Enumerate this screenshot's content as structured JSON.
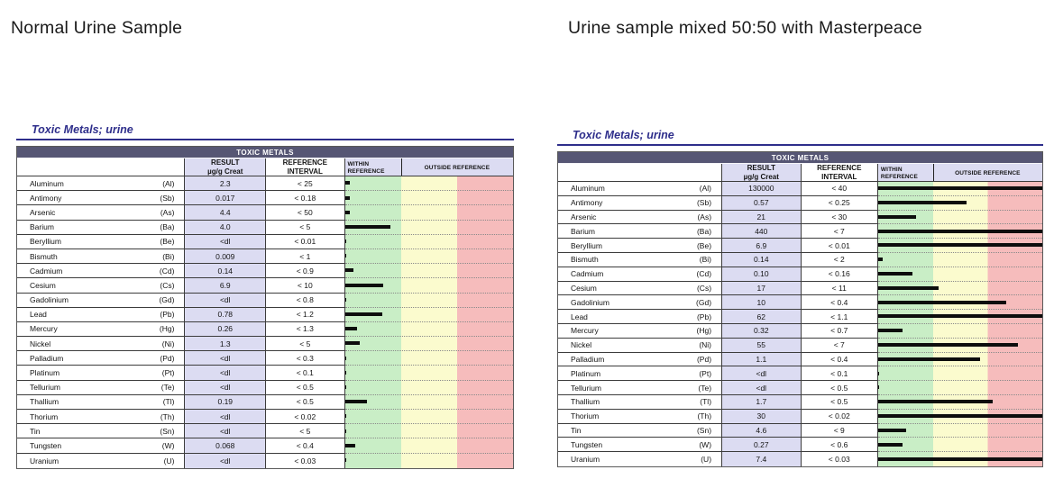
{
  "page": {
    "left_title": "Normal Urine Sample",
    "right_title": "Urine sample mixed 50:50 with Masterpeace"
  },
  "report": {
    "section_title": "Toxic Metals; urine",
    "table_caption": "TOXIC METALS",
    "headers": {
      "result_line1": "RESULT",
      "result_line2": "µg/g Creat",
      "reference_line1": "REFERENCE",
      "reference_line2": "INTERVAL",
      "within_line1": "WITHIN",
      "within_line2": "REFERENCE",
      "outside": "OUTSIDE REFERENCE"
    },
    "colors": {
      "within_zone": "#c9eec6",
      "outside_mid_zone": "#fbfbce",
      "outside_high_zone": "#f6bcbc",
      "result_column": "#dcdcf2",
      "caption_bar": "#565674",
      "section_title": "#2e2e8b",
      "bar": "#0d0d0d"
    }
  },
  "left_table": {
    "rows": [
      {
        "name": "Aluminum",
        "symbol": "(Al)",
        "result": "2.3",
        "reference": "< 25",
        "bar_pct": 3
      },
      {
        "name": "Antimony",
        "symbol": "(Sb)",
        "result": "0.017",
        "reference": "< 0.18",
        "bar_pct": 3
      },
      {
        "name": "Arsenic",
        "symbol": "(As)",
        "result": "4.4",
        "reference": "< 50",
        "bar_pct": 3
      },
      {
        "name": "Barium",
        "symbol": "(Ba)",
        "result": "4.0",
        "reference": "< 5",
        "bar_pct": 27
      },
      {
        "name": "Beryllium",
        "symbol": "(Be)",
        "result": "<dl",
        "reference": "< 0.01",
        "bar_pct": 0
      },
      {
        "name": "Bismuth",
        "symbol": "(Bi)",
        "result": "0.009",
        "reference": "< 1",
        "bar_pct": 1
      },
      {
        "name": "Cadmium",
        "symbol": "(Cd)",
        "result": "0.14",
        "reference": "< 0.9",
        "bar_pct": 5
      },
      {
        "name": "Cesium",
        "symbol": "(Cs)",
        "result": "6.9",
        "reference": "< 10",
        "bar_pct": 23
      },
      {
        "name": "Gadolinium",
        "symbol": "(Gd)",
        "result": "<dl",
        "reference": "< 0.8",
        "bar_pct": 0
      },
      {
        "name": "Lead",
        "symbol": "(Pb)",
        "result": "0.78",
        "reference": "< 1.2",
        "bar_pct": 22
      },
      {
        "name": "Mercury",
        "symbol": "(Hg)",
        "result": "0.26",
        "reference": "< 1.3",
        "bar_pct": 7
      },
      {
        "name": "Nickel",
        "symbol": "(Ni)",
        "result": "1.3",
        "reference": "< 5",
        "bar_pct": 9
      },
      {
        "name": "Palladium",
        "symbol": "(Pd)",
        "result": "<dl",
        "reference": "< 0.3",
        "bar_pct": 0
      },
      {
        "name": "Platinum",
        "symbol": "(Pt)",
        "result": "<dl",
        "reference": "< 0.1",
        "bar_pct": 0
      },
      {
        "name": "Tellurium",
        "symbol": "(Te)",
        "result": "<dl",
        "reference": "< 0.5",
        "bar_pct": 0
      },
      {
        "name": "Thallium",
        "symbol": "(Tl)",
        "result": "0.19",
        "reference": "< 0.5",
        "bar_pct": 13
      },
      {
        "name": "Thorium",
        "symbol": "(Th)",
        "result": "<dl",
        "reference": "< 0.02",
        "bar_pct": 0
      },
      {
        "name": "Tin",
        "symbol": "(Sn)",
        "result": "<dl",
        "reference": "< 5",
        "bar_pct": 0
      },
      {
        "name": "Tungsten",
        "symbol": "(W)",
        "result": "0.068",
        "reference": "< 0.4",
        "bar_pct": 6
      },
      {
        "name": "Uranium",
        "symbol": "(U)",
        "result": "<dl",
        "reference": "< 0.03",
        "bar_pct": 0
      }
    ]
  },
  "right_table": {
    "rows": [
      {
        "name": "Aluminum",
        "symbol": "(Al)",
        "result": "130000",
        "reference": "< 40",
        "bar_pct": 100
      },
      {
        "name": "Antimony",
        "symbol": "(Sb)",
        "result": "0.57",
        "reference": "< 0.25",
        "bar_pct": 54
      },
      {
        "name": "Arsenic",
        "symbol": "(As)",
        "result": "21",
        "reference": "< 30",
        "bar_pct": 23
      },
      {
        "name": "Barium",
        "symbol": "(Ba)",
        "result": "440",
        "reference": "< 7",
        "bar_pct": 100
      },
      {
        "name": "Beryllium",
        "symbol": "(Be)",
        "result": "6.9",
        "reference": "< 0.01",
        "bar_pct": 100
      },
      {
        "name": "Bismuth",
        "symbol": "(Bi)",
        "result": "0.14",
        "reference": "< 2",
        "bar_pct": 3
      },
      {
        "name": "Cadmium",
        "symbol": "(Cd)",
        "result": "0.10",
        "reference": "< 0.16",
        "bar_pct": 21
      },
      {
        "name": "Cesium",
        "symbol": "(Cs)",
        "result": "17",
        "reference": "< 11",
        "bar_pct": 37
      },
      {
        "name": "Gadolinium",
        "symbol": "(Gd)",
        "result": "10",
        "reference": "< 0.4",
        "bar_pct": 78
      },
      {
        "name": "Lead",
        "symbol": "(Pb)",
        "result": "62",
        "reference": "< 1.1",
        "bar_pct": 100
      },
      {
        "name": "Mercury",
        "symbol": "(Hg)",
        "result": "0.32",
        "reference": "< 0.7",
        "bar_pct": 15
      },
      {
        "name": "Nickel",
        "symbol": "(Ni)",
        "result": "55",
        "reference": "< 7",
        "bar_pct": 85
      },
      {
        "name": "Palladium",
        "symbol": "(Pd)",
        "result": "1.1",
        "reference": "< 0.4",
        "bar_pct": 62
      },
      {
        "name": "Platinum",
        "symbol": "(Pt)",
        "result": "<dl",
        "reference": "< 0.1",
        "bar_pct": 0
      },
      {
        "name": "Tellurium",
        "symbol": "(Te)",
        "result": "<dl",
        "reference": "< 0.5",
        "bar_pct": 0
      },
      {
        "name": "Thallium",
        "symbol": "(Tl)",
        "result": "1.7",
        "reference": "< 0.5",
        "bar_pct": 70
      },
      {
        "name": "Thorium",
        "symbol": "(Th)",
        "result": "30",
        "reference": "< 0.02",
        "bar_pct": 100
      },
      {
        "name": "Tin",
        "symbol": "(Sn)",
        "result": "4.6",
        "reference": "< 9",
        "bar_pct": 17
      },
      {
        "name": "Tungsten",
        "symbol": "(W)",
        "result": "0.27",
        "reference": "< 0.6",
        "bar_pct": 15
      },
      {
        "name": "Uranium",
        "symbol": "(U)",
        "result": "7.4",
        "reference": "< 0.03",
        "bar_pct": 100
      }
    ]
  }
}
